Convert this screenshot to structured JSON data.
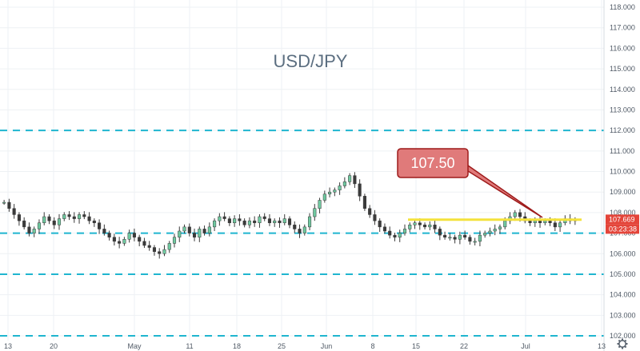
{
  "chart_data": {
    "type": "candlestick",
    "title": "USD/JPY",
    "xlabel": "",
    "ylabel": "",
    "ylim": [
      102.0,
      118.0
    ],
    "y_ticks": [
      "118.000",
      "117.000",
      "116.000",
      "115.000",
      "114.000",
      "113.000",
      "112.000",
      "111.000",
      "110.000",
      "109.000",
      "108.000",
      "107.000",
      "106.000",
      "105.000",
      "104.000",
      "103.000",
      "102.000"
    ],
    "x_ticks": [
      "13",
      "20",
      "May",
      "11",
      "18",
      "25",
      "Jun",
      "8",
      "15",
      "22",
      "Jul",
      "13"
    ],
    "grid": true,
    "series": [
      {
        "values": [
          108.5,
          108.2,
          107.9,
          107.6,
          107.3,
          107.0,
          107.2,
          107.5,
          107.8,
          107.6,
          107.4,
          107.7,
          107.9,
          107.8,
          107.7,
          107.9,
          107.8,
          107.6,
          107.5,
          107.2,
          107.0,
          106.8,
          106.6,
          106.5,
          106.7,
          107.0,
          106.8,
          106.6,
          106.4,
          106.3,
          106.1,
          106.0,
          106.2,
          106.5,
          106.8,
          107.1,
          107.3,
          107.0,
          106.8,
          107.2,
          107.0,
          107.3,
          107.6,
          107.8,
          107.7,
          107.5,
          107.7,
          107.6,
          107.4,
          107.6,
          107.5,
          107.8,
          107.7,
          107.5,
          107.6,
          107.5,
          107.7,
          107.4,
          107.2,
          107.0,
          107.3,
          107.8,
          108.2,
          108.6,
          108.9,
          109.0,
          109.1,
          109.3,
          109.5,
          109.8,
          109.4,
          108.8,
          108.2,
          107.9,
          107.6,
          107.3,
          107.1,
          106.9,
          106.8,
          107.0,
          107.2,
          107.4,
          107.5,
          107.4,
          107.3,
          107.4,
          107.2,
          106.9,
          106.8,
          106.8,
          106.7,
          106.9,
          106.8,
          106.6,
          106.6,
          106.9,
          107.0,
          107.1,
          107.2,
          107.3,
          107.6,
          107.8,
          108.0,
          107.8,
          107.6,
          107.5,
          107.6,
          107.5,
          107.6,
          107.5,
          107.3,
          107.5,
          107.7,
          107.6,
          107.65
        ]
      }
    ],
    "annotations": {
      "callout_label": "107.50",
      "support_line": 107.5,
      "dashed_levels": [
        112.0,
        107.0,
        105.0,
        102.0
      ]
    },
    "price_tag": "107.669",
    "countdown_tag": "03:23:38",
    "colors": {
      "up": "#26a69a",
      "down": "#ef5350",
      "candle_body": "#3a3a3a",
      "dashed": "#1fb5cf",
      "support": "#f4e23c",
      "callout_fill": "#e07a7a",
      "callout_stroke": "#9e1b1b",
      "price_tag_bg": "#e4453a",
      "grid": "#eef1f4"
    }
  }
}
